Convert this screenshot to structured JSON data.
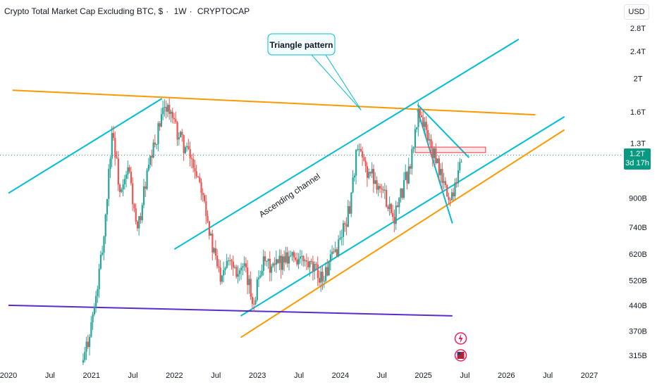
{
  "header": {
    "symbol_title": "Crypto Total Market Cap Excluding BTC, $",
    "interval": "1W",
    "source": "CRYPTOCAP",
    "currency": "USD"
  },
  "price_badge": {
    "value": "1.2T",
    "countdown": "3d 17h"
  },
  "colors": {
    "up": "#26a69a",
    "down": "#ef5350",
    "channel": "#00bcd4",
    "resistance": "#ff9800",
    "support": "#5b2bc9",
    "box": "#f23645",
    "last_price": "#089981"
  },
  "chart_data": {
    "type": "candlestick",
    "y_scale": "log",
    "y_ticks": [
      "2.8T",
      "2.4T",
      "2T",
      "1.6T",
      "1.3T",
      "900B",
      "740B",
      "620B",
      "520B",
      "440B",
      "370B",
      "315B"
    ],
    "x_ticks": [
      "2020",
      "Jul",
      "2021",
      "Jul",
      "2022",
      "Jul",
      "2023",
      "Jul",
      "2024",
      "Jul",
      "2025",
      "Jul",
      "2026",
      "Jul",
      "2027"
    ],
    "last_value": "1.2T",
    "annotations": [
      "Triangle pattern",
      "Ascending channel"
    ],
    "price_path": [
      [
        2020.9,
        300
      ],
      [
        2021.05,
        450
      ],
      [
        2021.15,
        700
      ],
      [
        2021.25,
        1450
      ],
      [
        2021.35,
        900
      ],
      [
        2021.45,
        1100
      ],
      [
        2021.55,
        700
      ],
      [
        2021.65,
        1000
      ],
      [
        2021.8,
        1400
      ],
      [
        2021.9,
        1700
      ],
      [
        2022.0,
        1450
      ],
      [
        2022.1,
        1300
      ],
      [
        2022.25,
        1100
      ],
      [
        2022.35,
        950
      ],
      [
        2022.45,
        650
      ],
      [
        2022.55,
        540
      ],
      [
        2022.65,
        620
      ],
      [
        2022.75,
        560
      ],
      [
        2022.85,
        550
      ],
      [
        2022.95,
        450
      ],
      [
        2023.05,
        580
      ],
      [
        2023.2,
        560
      ],
      [
        2023.35,
        620
      ],
      [
        2023.5,
        600
      ],
      [
        2023.65,
        560
      ],
      [
        2023.8,
        530
      ],
      [
        2023.95,
        640
      ],
      [
        2024.1,
        820
      ],
      [
        2024.2,
        1250
      ],
      [
        2024.3,
        1100
      ],
      [
        2024.45,
        1000
      ],
      [
        2024.55,
        900
      ],
      [
        2024.65,
        800
      ],
      [
        2024.75,
        950
      ],
      [
        2024.85,
        1150
      ],
      [
        2024.95,
        1650
      ],
      [
        2025.05,
        1350
      ],
      [
        2025.15,
        1150
      ],
      [
        2025.25,
        980
      ],
      [
        2025.32,
        880
      ],
      [
        2025.4,
        1050
      ],
      [
        2025.47,
        1200
      ]
    ]
  }
}
